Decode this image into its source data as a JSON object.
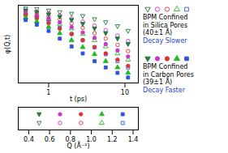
{
  "chart_data": {
    "type": "scatter",
    "x_label": "t (ps)",
    "y_label": "φ(Q,t)",
    "log": "x",
    "xlim": [
      0.4,
      15
    ],
    "xticks": [
      1,
      10
    ],
    "ylim": [
      0,
      1
    ],
    "tick_labels": "x",
    "x": [
      0.5,
      0.7,
      1,
      1.4,
      2,
      2.8,
      4,
      5.6,
      8,
      11
    ],
    "q_label": "Q (Å⁻¹)",
    "qlim": [
      0.3,
      1.45
    ],
    "qticks": [
      0.4,
      0.6,
      0.8,
      {
        "value": 1,
        "label": "1.0"
      },
      1.2,
      1.4
    ],
    "groups": [
      {
        "label": [
          "BPM Confined",
          "in Silica Pores",
          "(40±1 Å)"
        ],
        "note": "Decay Slower",
        "series": [
          {
            "q": 0.5,
            "color": "#1f7a3a",
            "marker": "triangle-down-open",
            "values": [
              0.96,
              0.95,
              0.93,
              0.91,
              0.89,
              0.86,
              0.82,
              0.78,
              0.73,
              0.67
            ]
          },
          {
            "q": 0.7,
            "color": "#cc33cc",
            "marker": "circle-open",
            "values": [
              0.94,
              0.92,
              0.9,
              0.87,
              0.83,
              0.79,
              0.74,
              0.68,
              0.61,
              0.54
            ]
          },
          {
            "q": 0.9,
            "color": "#e03030",
            "marker": "circle-open",
            "values": [
              0.92,
              0.9,
              0.86,
              0.82,
              0.77,
              0.71,
              0.64,
              0.57,
              0.49,
              0.41
            ]
          },
          {
            "q": 1.1,
            "color": "#22bb22",
            "marker": "triangle-open",
            "values": [
              0.9,
              0.87,
              0.82,
              0.76,
              0.7,
              0.63,
              0.55,
              0.47,
              0.38,
              0.3
            ]
          },
          {
            "q": 1.3,
            "color": "#3050e0",
            "marker": "square-open",
            "values": [
              0.88,
              0.84,
              0.78,
              0.71,
              0.63,
              0.55,
              0.46,
              0.37,
              0.28,
              0.2
            ]
          }
        ]
      },
      {
        "label": [
          "BPM Confined",
          "in Carbon Pores",
          "(39±1 Å)"
        ],
        "note": "Decay Faster",
        "series": [
          {
            "q": 0.5,
            "color": "#1f7a3a",
            "marker": "triangle-down",
            "values": [
              0.93,
              0.91,
              0.88,
              0.85,
              0.81,
              0.76,
              0.7,
              0.64,
              0.57,
              0.5
            ]
          },
          {
            "q": 0.7,
            "color": "#cc33cc",
            "marker": "circle",
            "values": [
              0.9,
              0.87,
              0.83,
              0.78,
              0.72,
              0.65,
              0.58,
              0.5,
              0.42,
              0.34
            ]
          },
          {
            "q": 0.9,
            "color": "#e03030",
            "marker": "circle",
            "values": [
              0.87,
              0.83,
              0.77,
              0.7,
              0.63,
              0.55,
              0.46,
              0.38,
              0.3,
              0.22
            ]
          },
          {
            "q": 1.1,
            "color": "#22bb22",
            "marker": "triangle",
            "values": [
              0.84,
              0.79,
              0.72,
              0.64,
              0.55,
              0.46,
              0.37,
              0.28,
              0.2,
              0.13
            ]
          },
          {
            "q": 1.3,
            "color": "#3050e0",
            "marker": "square",
            "values": [
              0.81,
              0.75,
              0.67,
              0.57,
              0.47,
              0.38,
              0.28,
              0.2,
              0.13,
              0.07
            ]
          }
        ]
      }
    ]
  }
}
